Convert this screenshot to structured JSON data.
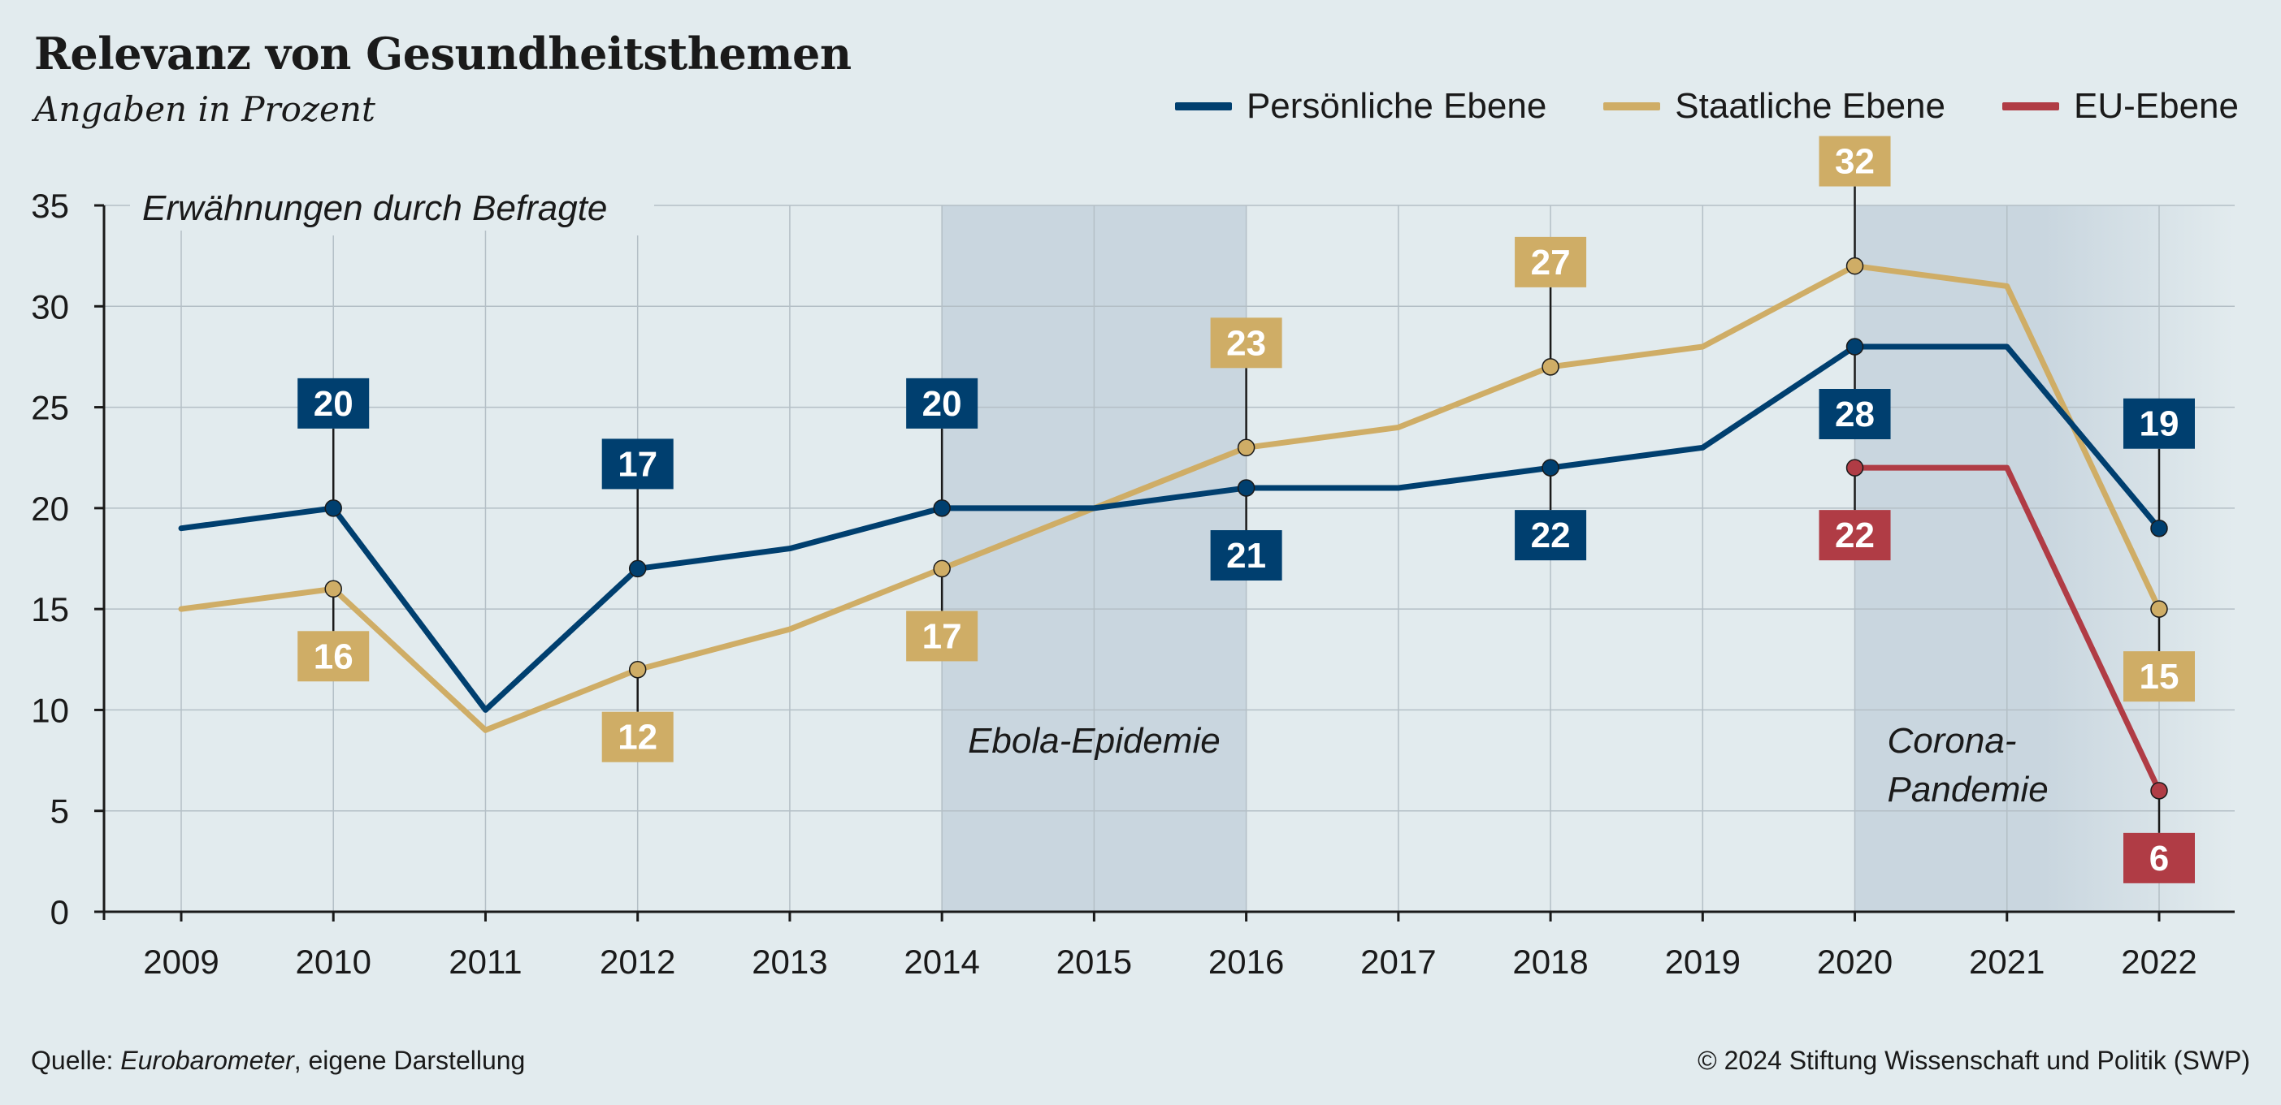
{
  "title": "Relevanz von Gesundheitsthemen",
  "subtitle": "Angaben in Prozent",
  "footer": {
    "source_prefix": "Quelle: ",
    "source_name": "Eurobarometer",
    "source_suffix": ", eigene Darstellung",
    "copyright": "© 2024 Stiftung Wissenschaft und Politik (SWP)"
  },
  "colors": {
    "background": "#e2ebee",
    "persoenlich": "#003f6f",
    "staatlich": "#cfad66",
    "eu": "#b03c45",
    "band": "#c9d6df",
    "grid": "#b4bfc6",
    "axis": "#1a1a1a"
  },
  "chart_data": {
    "type": "line",
    "x": [
      2009,
      2010,
      2011,
      2012,
      2013,
      2014,
      2015,
      2016,
      2017,
      2018,
      2019,
      2020,
      2021,
      2022
    ],
    "ylabel": "Erwähnungen durch Befragte",
    "ylim": [
      0,
      35
    ],
    "yticks": [
      0,
      5,
      10,
      15,
      20,
      25,
      30,
      35
    ],
    "grid": true,
    "legend_position": "top-right",
    "series": [
      {
        "name": "Persönliche Ebene",
        "color": "#003f6f",
        "values": [
          19,
          20,
          10,
          17,
          18,
          20,
          20,
          21,
          21,
          22,
          23,
          28,
          28,
          19
        ],
        "labels": [
          {
            "year": 2010,
            "value": 20,
            "pos": "above"
          },
          {
            "year": 2012,
            "value": 17,
            "pos": "above"
          },
          {
            "year": 2014,
            "value": 20,
            "pos": "above"
          },
          {
            "year": 2016,
            "value": 21,
            "pos": "below"
          },
          {
            "year": 2018,
            "value": 22,
            "pos": "below"
          },
          {
            "year": 2020,
            "value": 28,
            "pos": "below"
          },
          {
            "year": 2022,
            "value": 19,
            "pos": "above"
          }
        ]
      },
      {
        "name": "Staatliche Ebene",
        "color": "#cfad66",
        "values": [
          15,
          16,
          9,
          12,
          14,
          17,
          20,
          23,
          24,
          27,
          28,
          32,
          31,
          15
        ],
        "labels": [
          {
            "year": 2010,
            "value": 16,
            "pos": "below"
          },
          {
            "year": 2012,
            "value": 12,
            "pos": "below"
          },
          {
            "year": 2014,
            "value": 17,
            "pos": "below"
          },
          {
            "year": 2016,
            "value": 23,
            "pos": "above"
          },
          {
            "year": 2018,
            "value": 27,
            "pos": "above"
          },
          {
            "year": 2020,
            "value": 32,
            "pos": "above"
          },
          {
            "year": 2022,
            "value": 15,
            "pos": "below"
          }
        ]
      },
      {
        "name": "EU-Ebene",
        "color": "#b03c45",
        "values": [
          null,
          null,
          null,
          null,
          null,
          null,
          null,
          null,
          null,
          null,
          null,
          22,
          22,
          6
        ],
        "labels": [
          {
            "year": 2020,
            "value": 22,
            "pos": "below"
          },
          {
            "year": 2022,
            "value": 6,
            "pos": "below"
          }
        ]
      }
    ],
    "bands": [
      {
        "label": "Ebola-Epidemie",
        "from": 2014,
        "to": 2016,
        "label_lines": [
          "Ebola-Epidemie"
        ]
      },
      {
        "label": "Corona-Pandemie",
        "from": 2020,
        "to": 2022,
        "label_lines": [
          "Corona-",
          "Pandemie"
        ]
      }
    ]
  }
}
